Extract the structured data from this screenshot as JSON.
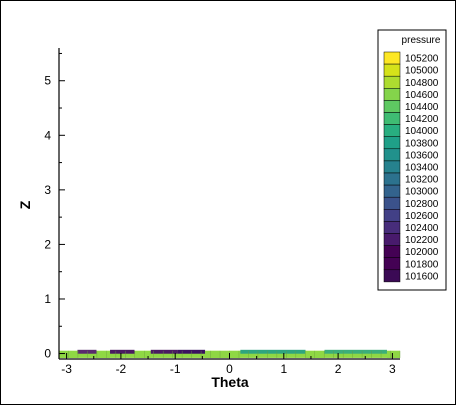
{
  "chart_data": {
    "type": "heatmap",
    "xlabel": "Theta",
    "ylabel": "Z",
    "xlim": [
      -3.14,
      3.14
    ],
    "ylim": [
      -0.1,
      5.6
    ],
    "xticks": [
      "-3",
      "-2",
      "-1",
      "0",
      "1",
      "2",
      "3"
    ],
    "xtick_values": [
      -3,
      -2,
      -1,
      0,
      1,
      2,
      3
    ],
    "yticks": [
      "0",
      "1",
      "2",
      "3",
      "4",
      "5"
    ],
    "ytick_values": [
      0,
      1,
      2,
      3,
      4,
      5
    ],
    "grid": false,
    "colormap": "viridis",
    "legend": {
      "title": "pressure",
      "placement": "top-right",
      "levels": [
        "105200",
        "105000",
        "104800",
        "104600",
        "104400",
        "104200",
        "104000",
        "103800",
        "103600",
        "103400",
        "103200",
        "103000",
        "102800",
        "102600",
        "102400",
        "102200",
        "102000",
        "101800",
        "101600"
      ],
      "colors": [
        "#fde725",
        "#d5e21a",
        "#addc30",
        "#84d44b",
        "#5ec962",
        "#3fbc73",
        "#28ae80",
        "#1fa088",
        "#21918c",
        "#26828e",
        "#2c728e",
        "#33638d",
        "#3b528b",
        "#424086",
        "#472d7b",
        "#481a6c",
        "#440154",
        "#440154",
        "#3b0a55"
      ]
    },
    "band": {
      "z_range": [
        -0.08,
        0.05
      ],
      "base_color": "#8fd744",
      "cells": [
        {
          "theta_range": [
            -3.14,
            -2.8
          ],
          "color": "#8fd744"
        },
        {
          "theta_range": [
            -2.8,
            -2.45
          ],
          "color": "#5a2a6e"
        },
        {
          "theta_range": [
            -2.45,
            -2.2
          ],
          "color": "#8fd744"
        },
        {
          "theta_range": [
            -2.2,
            -1.75
          ],
          "color": "#4a1a62"
        },
        {
          "theta_range": [
            -1.75,
            -1.45
          ],
          "color": "#8fd744"
        },
        {
          "theta_range": [
            -1.45,
            -0.95
          ],
          "color": "#4a1a62"
        },
        {
          "theta_range": [
            -0.95,
            -0.45
          ],
          "color": "#3b1260"
        },
        {
          "theta_range": [
            -0.45,
            0.2
          ],
          "color": "#8fd744"
        },
        {
          "theta_range": [
            0.2,
            1.4
          ],
          "color": "#2fa57f"
        },
        {
          "theta_range": [
            1.4,
            1.75
          ],
          "color": "#8fd744"
        },
        {
          "theta_range": [
            1.75,
            2.9
          ],
          "color": "#3cae7a"
        },
        {
          "theta_range": [
            2.9,
            3.14
          ],
          "color": "#8fd744"
        }
      ]
    }
  }
}
